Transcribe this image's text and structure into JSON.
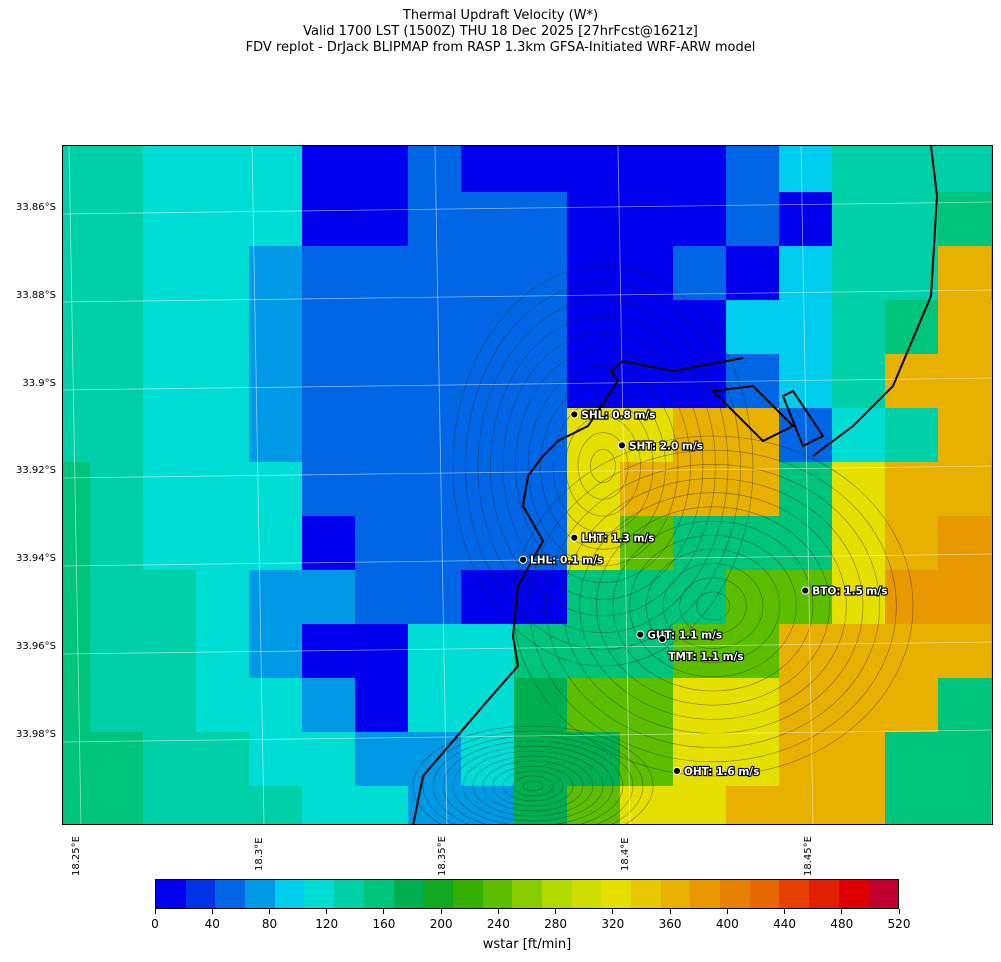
{
  "title": {
    "line1": "Thermal Updraft Velocity (W*)",
    "line2": "Valid 1700 LST (1500Z) THU 18 Dec 2025 [27hrFcst@1621z]",
    "line3": "FDV replot - DrJack BLIPMAP from RASP 1.3km GFSA-Initiated WRF-ARW model"
  },
  "lat_labels": [
    "33.86°S",
    "33.88°S",
    "33.9°S",
    "33.92°S",
    "33.94°S",
    "33.96°S",
    "33.98°S"
  ],
  "lon_labels": [
    "18.25°E",
    "18.3°E",
    "18.35°E",
    "18.4°E",
    "18.45°E"
  ],
  "stations": [
    {
      "label": "SHL: 0.8 m/s",
      "lon": 18.384,
      "lat": -33.908
    },
    {
      "label": "SHT: 2.0 m/s",
      "lon": 18.397,
      "lat": -33.915
    },
    {
      "label": "LHT: 1.3 m/s",
      "lon": 18.384,
      "lat": -33.936
    },
    {
      "label": "LHL: 0.1 m/s",
      "lon": 18.37,
      "lat": -33.941
    },
    {
      "label": "BTO: 1.5 m/s",
      "lon": 18.447,
      "lat": -33.948
    },
    {
      "label": "GUT: 1.1 m/s",
      "lon": 18.402,
      "lat": -33.958
    },
    {
      "label": "TMT: 1.1 m/s",
      "lon": 18.408,
      "lat": -33.959
    },
    {
      "label": "OHT: 1.6 m/s",
      "lon": 18.412,
      "lat": -33.989
    }
  ],
  "colorbar": {
    "title": "wstar [ft/min]",
    "tick_labels": [
      "0",
      "40",
      "80",
      "120",
      "160",
      "200",
      "240",
      "280",
      "320",
      "360",
      "400",
      "440",
      "480",
      "520"
    ],
    "colors": [
      "#0000ee",
      "#0033e6",
      "#0066e6",
      "#0099e6",
      "#00ccee",
      "#00ddd5",
      "#00d0a8",
      "#00c47a",
      "#00b050",
      "#11a822",
      "#33b000",
      "#5dbe00",
      "#88cc00",
      "#b3da00",
      "#d0dd00",
      "#e6e000",
      "#e8c800",
      "#e8b000",
      "#e89800",
      "#e88000",
      "#e86800",
      "#e84000",
      "#e02000",
      "#dd0000",
      "#c00030"
    ]
  },
  "grid": {
    "rows": [
      "5566666777FFFFF77744444453",
      "5566666676677755554444444FF",
      "556667777777766544444443",
      "5566677777777766544444442",
      "5566677777777777763344444212",
      "5566667777777777F2221444422",
      "5566667777FFFFFDCCDDBBBCCDE",
      "45566677777FFFF9ABCCCDEEEEE",
      "4556667777777FFC99ABCCDEEEE",
      "4556667776777799999DDEEEEEE",
      "4456677666668899AACDEEEEE",
      "4456656666669AAAAEEEE",
      "445556666677AAEFFEEEEEE"
    ]
  }
}
